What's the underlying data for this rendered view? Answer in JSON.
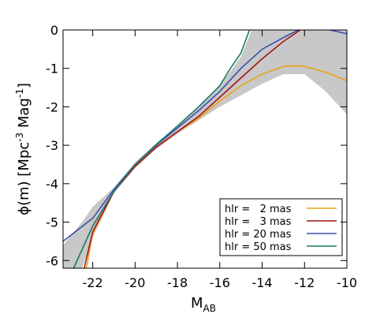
{
  "chart_data": {
    "type": "line",
    "x_label": {
      "main": "M",
      "sub": "AB"
    },
    "y_label": {
      "parts": [
        "ϕ(m) [Mpc",
        "-3",
        " Mag",
        "-1",
        "]"
      ]
    },
    "xlim": [
      -23.4,
      -10
    ],
    "ylim": [
      -6.2,
      0
    ],
    "xticks": [
      -22,
      -20,
      -18,
      -16,
      -14,
      -12,
      -10
    ],
    "yticks": [
      0,
      -1,
      -2,
      -3,
      -4,
      -5,
      -6
    ],
    "legend": "lower right",
    "band": {
      "color": "#c8c8c8",
      "x": [
        -23.4,
        -22.5,
        -22,
        -21,
        -20,
        -19,
        -18,
        -17,
        -16,
        -15,
        -14.5,
        -14,
        -13,
        -12,
        -11,
        -10
      ],
      "upper": [
        -5.6,
        -5.0,
        -4.6,
        -4.1,
        -3.45,
        -2.95,
        -2.5,
        -2.0,
        -1.45,
        -0.7,
        0,
        0,
        0,
        0,
        0,
        0
      ],
      "lower": [
        -6.2,
        -6.2,
        -5.4,
        -4.25,
        -3.6,
        -3.1,
        -2.7,
        -2.35,
        -2.0,
        -1.7,
        -1.55,
        -1.4,
        -1.15,
        -1.15,
        -1.6,
        -2.2
      ]
    },
    "series": [
      {
        "name": "hlr =   2 mas",
        "color": "#e8a317",
        "x": [
          -22.3,
          -22,
          -21,
          -20,
          -19,
          -18,
          -17,
          -16,
          -15,
          -14,
          -13,
          -12.5,
          -12,
          -11,
          -10
        ],
        "values": [
          -6.2,
          -5.3,
          -4.2,
          -3.55,
          -3.05,
          -2.65,
          -2.3,
          -1.85,
          -1.45,
          -1.15,
          -0.95,
          -0.93,
          -0.95,
          -1.1,
          -1.32
        ]
      },
      {
        "name": "hlr =   3 mas",
        "color": "#a31515",
        "x": [
          -22.4,
          -22,
          -21,
          -20,
          -19,
          -18,
          -17,
          -16,
          -15,
          -14,
          -13,
          -12.2
        ],
        "values": [
          -6.2,
          -5.25,
          -4.2,
          -3.55,
          -3.05,
          -2.65,
          -2.25,
          -1.75,
          -1.25,
          -0.75,
          -0.3,
          0
        ]
      },
      {
        "name": "hlr = 20 mas",
        "color": "#3b4fb0",
        "x": [
          -23.4,
          -22,
          -21,
          -20,
          -19,
          -18,
          -17,
          -16,
          -15,
          -14,
          -13,
          -12.3,
          -11,
          -10.8,
          -10
        ],
        "values": [
          -5.5,
          -4.9,
          -4.15,
          -3.5,
          -3.0,
          -2.55,
          -2.1,
          -1.6,
          -1.0,
          -0.5,
          -0.2,
          0,
          null,
          0,
          -0.1
        ]
      },
      {
        "name": "hlr = 50 mas",
        "color": "#1a7a6a",
        "x": [
          -22.9,
          -22,
          -21,
          -20,
          -19,
          -18,
          -17,
          -16,
          -15.5,
          -15,
          -14.6
        ],
        "values": [
          -6.2,
          -5.1,
          -4.2,
          -3.5,
          -2.98,
          -2.5,
          -2.0,
          -1.45,
          -1.0,
          -0.6,
          0
        ]
      }
    ]
  }
}
